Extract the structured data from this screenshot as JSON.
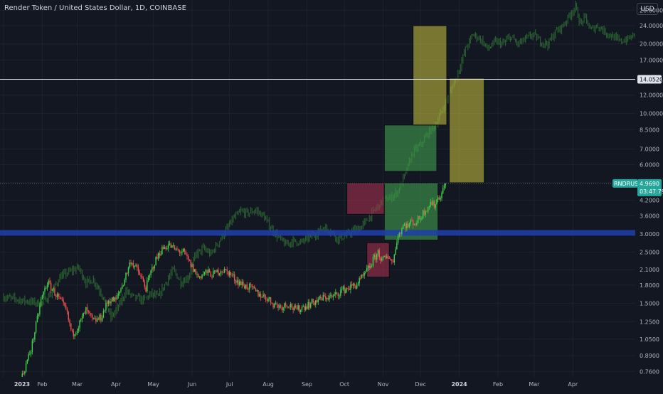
{
  "header": {
    "title": "Render Token / United States Dollar, 1D, COINBASE",
    "currency": "USD"
  },
  "colors": {
    "background": "#131722",
    "up": "#26a69a",
    "up_bright": "#43d14a",
    "down": "#ef5350",
    "ghost": "#2e6b33",
    "support_band": "#1f3fa8",
    "yellow_box": "#b8b23a",
    "green_box": "#3f9a4c",
    "red_box": "#9e2f4c"
  },
  "chart_data": {
    "type": "candlestick",
    "scale": "log",
    "ylim": [
      0.72,
      31
    ],
    "y_ticks": [
      "28.0000",
      "24.0000",
      "20.0000",
      "17.0000",
      "14.0000",
      "12.0000",
      "10.0000",
      "8.5000",
      "7.0000",
      "6.0000",
      "5.0000",
      "4.2000",
      "3.6000",
      "3.0000",
      "2.5000",
      "2.1000",
      "1.8000",
      "1.5000",
      "1.2500",
      "1.0500",
      "0.8900",
      "0.7600"
    ],
    "x_ticks": [
      "2023",
      "Feb",
      "Mar",
      "Apr",
      "May",
      "Jun",
      "Jul",
      "Aug",
      "Sep",
      "Oct",
      "Nov",
      "Dec",
      "2024",
      "Feb",
      "Mar",
      "Apr"
    ],
    "x_ticks_bold": [
      "2023",
      "2024"
    ],
    "price_line": {
      "value": 14.052,
      "label": "14.0520"
    },
    "last_price": {
      "symbol": "RNDRUSD",
      "value": "4.9690",
      "countdown": "03:47:79"
    },
    "support_band": {
      "low": 2.95,
      "high": 3.12
    },
    "close_series": [
      {
        "d": 0,
        "c": 0.63
      },
      {
        "d": 14,
        "c": 0.7
      },
      {
        "d": 22,
        "c": 0.95
      },
      {
        "d": 26,
        "c": 1.2
      },
      {
        "d": 30,
        "c": 1.55
      },
      {
        "d": 35,
        "c": 1.85
      },
      {
        "d": 40,
        "c": 1.7
      },
      {
        "d": 45,
        "c": 1.55
      },
      {
        "d": 50,
        "c": 1.4
      },
      {
        "d": 55,
        "c": 1.1
      },
      {
        "d": 60,
        "c": 1.2
      },
      {
        "d": 66,
        "c": 1.4
      },
      {
        "d": 72,
        "c": 1.25
      },
      {
        "d": 78,
        "c": 1.3
      },
      {
        "d": 84,
        "c": 1.55
      },
      {
        "d": 90,
        "c": 1.55
      },
      {
        "d": 96,
        "c": 1.85
      },
      {
        "d": 102,
        "c": 2.3
      },
      {
        "d": 108,
        "c": 2.05
      },
      {
        "d": 114,
        "c": 1.75
      },
      {
        "d": 120,
        "c": 2.2
      },
      {
        "d": 126,
        "c": 2.55
      },
      {
        "d": 132,
        "c": 2.7
      },
      {
        "d": 138,
        "c": 2.55
      },
      {
        "d": 144,
        "c": 2.5
      },
      {
        "d": 150,
        "c": 2.2
      },
      {
        "d": 156,
        "c": 1.95
      },
      {
        "d": 162,
        "c": 2.05
      },
      {
        "d": 168,
        "c": 2.0
      },
      {
        "d": 174,
        "c": 2.1
      },
      {
        "d": 180,
        "c": 2.05
      },
      {
        "d": 186,
        "c": 1.9
      },
      {
        "d": 192,
        "c": 1.8
      },
      {
        "d": 198,
        "c": 1.75
      },
      {
        "d": 204,
        "c": 1.65
      },
      {
        "d": 210,
        "c": 1.6
      },
      {
        "d": 216,
        "c": 1.5
      },
      {
        "d": 222,
        "c": 1.45
      },
      {
        "d": 228,
        "c": 1.5
      },
      {
        "d": 234,
        "c": 1.4
      },
      {
        "d": 240,
        "c": 1.45
      },
      {
        "d": 246,
        "c": 1.5
      },
      {
        "d": 252,
        "c": 1.55
      },
      {
        "d": 258,
        "c": 1.6
      },
      {
        "d": 264,
        "c": 1.6
      },
      {
        "d": 270,
        "c": 1.7
      },
      {
        "d": 276,
        "c": 1.75
      },
      {
        "d": 282,
        "c": 1.8
      },
      {
        "d": 288,
        "c": 1.95
      },
      {
        "d": 294,
        "c": 2.2
      },
      {
        "d": 297,
        "c": 2.35
      },
      {
        "d": 300,
        "c": 2.5
      },
      {
        "d": 303,
        "c": 2.3
      },
      {
        "d": 306,
        "c": 2.35
      },
      {
        "d": 309,
        "c": 2.4
      },
      {
        "d": 312,
        "c": 2.25
      },
      {
        "d": 315,
        "c": 2.85
      },
      {
        "d": 318,
        "c": 3.1
      },
      {
        "d": 321,
        "c": 3.3
      },
      {
        "d": 324,
        "c": 3.25
      },
      {
        "d": 327,
        "c": 3.4
      },
      {
        "d": 330,
        "c": 3.35
      },
      {
        "d": 333,
        "c": 3.5
      },
      {
        "d": 336,
        "c": 3.7
      },
      {
        "d": 339,
        "c": 3.9
      },
      {
        "d": 342,
        "c": 4.1
      },
      {
        "d": 345,
        "c": 4.0
      },
      {
        "d": 348,
        "c": 4.3
      },
      {
        "d": 351,
        "c": 4.5
      },
      {
        "d": 354,
        "c": 4.969
      }
    ],
    "ghost_series": [
      {
        "d": 0,
        "c": 1.6
      },
      {
        "d": 14,
        "c": 1.55
      },
      {
        "d": 30,
        "c": 1.5
      },
      {
        "d": 38,
        "c": 1.65
      },
      {
        "d": 45,
        "c": 1.95
      },
      {
        "d": 52,
        "c": 2.05
      },
      {
        "d": 60,
        "c": 2.15
      },
      {
        "d": 66,
        "c": 1.85
      },
      {
        "d": 72,
        "c": 1.9
      },
      {
        "d": 80,
        "c": 1.6
      },
      {
        "d": 86,
        "c": 1.3
      },
      {
        "d": 92,
        "c": 1.45
      },
      {
        "d": 98,
        "c": 1.7
      },
      {
        "d": 104,
        "c": 1.6
      },
      {
        "d": 112,
        "c": 1.55
      },
      {
        "d": 118,
        "c": 1.65
      },
      {
        "d": 124,
        "c": 1.6
      },
      {
        "d": 130,
        "c": 1.85
      },
      {
        "d": 136,
        "c": 2.1
      },
      {
        "d": 142,
        "c": 1.85
      },
      {
        "d": 148,
        "c": 1.95
      },
      {
        "d": 154,
        "c": 2.45
      },
      {
        "d": 160,
        "c": 2.6
      },
      {
        "d": 166,
        "c": 2.45
      },
      {
        "d": 172,
        "c": 2.75
      },
      {
        "d": 178,
        "c": 3.1
      },
      {
        "d": 184,
        "c": 3.5
      },
      {
        "d": 190,
        "c": 3.75
      },
      {
        "d": 196,
        "c": 3.7
      },
      {
        "d": 202,
        "c": 3.8
      },
      {
        "d": 208,
        "c": 3.6
      },
      {
        "d": 214,
        "c": 3.2
      },
      {
        "d": 220,
        "c": 2.9
      },
      {
        "d": 226,
        "c": 2.7
      },
      {
        "d": 232,
        "c": 2.8
      },
      {
        "d": 238,
        "c": 2.75
      },
      {
        "d": 244,
        "c": 2.9
      },
      {
        "d": 250,
        "c": 3.0
      },
      {
        "d": 256,
        "c": 3.2
      },
      {
        "d": 262,
        "c": 3.1
      },
      {
        "d": 268,
        "c": 2.85
      },
      {
        "d": 274,
        "c": 2.95
      },
      {
        "d": 280,
        "c": 3.1
      },
      {
        "d": 286,
        "c": 3.2
      },
      {
        "d": 292,
        "c": 3.5
      },
      {
        "d": 298,
        "c": 3.85
      },
      {
        "d": 304,
        "c": 4.2
      },
      {
        "d": 310,
        "c": 4.3
      },
      {
        "d": 316,
        "c": 4.6
      },
      {
        "d": 322,
        "c": 5.5
      },
      {
        "d": 328,
        "c": 6.8
      },
      {
        "d": 334,
        "c": 7.3
      },
      {
        "d": 340,
        "c": 8.2
      },
      {
        "d": 346,
        "c": 8.9
      },
      {
        "d": 352,
        "c": 10.5
      },
      {
        "d": 358,
        "c": 12.5
      },
      {
        "d": 364,
        "c": 15.0
      },
      {
        "d": 370,
        "c": 19.0
      },
      {
        "d": 376,
        "c": 22.0
      },
      {
        "d": 382,
        "c": 21.0
      },
      {
        "d": 388,
        "c": 19.0
      },
      {
        "d": 394,
        "c": 20.5
      },
      {
        "d": 400,
        "c": 20.0
      },
      {
        "d": 406,
        "c": 21.5
      },
      {
        "d": 412,
        "c": 20.0
      },
      {
        "d": 418,
        "c": 21.0
      },
      {
        "d": 424,
        "c": 22.0
      },
      {
        "d": 430,
        "c": 20.5
      },
      {
        "d": 436,
        "c": 20.0
      },
      {
        "d": 442,
        "c": 22.5
      },
      {
        "d": 448,
        "c": 24.0
      },
      {
        "d": 454,
        "c": 27.0
      },
      {
        "d": 458,
        "c": 29.0
      },
      {
        "d": 462,
        "c": 24.5
      },
      {
        "d": 466,
        "c": 26.0
      },
      {
        "d": 470,
        "c": 23.0
      },
      {
        "d": 476,
        "c": 24.0
      },
      {
        "d": 482,
        "c": 22.5
      },
      {
        "d": 488,
        "c": 21.5
      },
      {
        "d": 494,
        "c": 20.5
      },
      {
        "d": 500,
        "c": 21.0
      },
      {
        "d": 506,
        "c": 22.0
      }
    ],
    "zones": [
      {
        "kind": "red",
        "d0": 275,
        "d1": 305,
        "p0": 3.65,
        "p1": 5.0
      },
      {
        "kind": "red",
        "d0": 291,
        "d1": 309,
        "p0": 1.95,
        "p1": 2.75
      },
      {
        "kind": "green",
        "d0": 305,
        "d1": 348,
        "p0": 2.82,
        "p1": 5.0
      },
      {
        "kind": "green",
        "d0": 305,
        "d1": 347,
        "p0": 5.6,
        "p1": 8.9
      },
      {
        "kind": "yellow",
        "d0": 328,
        "d1": 355,
        "p0": 8.9,
        "p1": 24.0
      },
      {
        "kind": "yellow",
        "d0": 357,
        "d1": 385,
        "p0": 5.0,
        "p1": 14.2
      }
    ]
  }
}
